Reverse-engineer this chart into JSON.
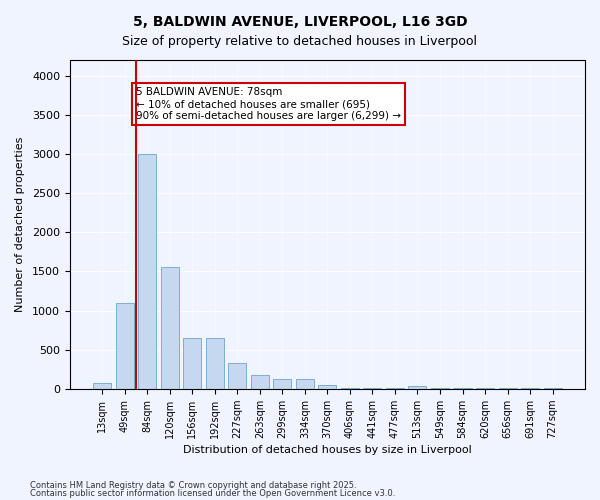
{
  "title1": "5, BALDWIN AVENUE, LIVERPOOL, L16 3GD",
  "title2": "Size of property relative to detached houses in Liverpool",
  "xlabel": "Distribution of detached houses by size in Liverpool",
  "ylabel": "Number of detached properties",
  "bar_color": "#c5d8f0",
  "bar_edge_color": "#7aafd4",
  "categories": [
    "13sqm",
    "49sqm",
    "84sqm",
    "120sqm",
    "156sqm",
    "192sqm",
    "227sqm",
    "263sqm",
    "299sqm",
    "334sqm",
    "370sqm",
    "406sqm",
    "441sqm",
    "477sqm",
    "513sqm",
    "549sqm",
    "584sqm",
    "620sqm",
    "656sqm",
    "691sqm",
    "727sqm"
  ],
  "values": [
    75,
    1100,
    3000,
    1550,
    650,
    650,
    330,
    180,
    130,
    130,
    50,
    10,
    5,
    5,
    30,
    5,
    5,
    5,
    5,
    5,
    5
  ],
  "ylim": [
    0,
    4200
  ],
  "yticks": [
    0,
    500,
    1000,
    1500,
    2000,
    2500,
    3000,
    3500,
    4000
  ],
  "vline_x": 1,
  "vline_color": "#cc0000",
  "annotation_box_text": "5 BALDWIN AVENUE: 78sqm\n← 10% of detached houses are smaller (695)\n90% of semi-detached houses are larger (6,299) →",
  "annotation_box_color": "#cc0000",
  "annotation_box_bg": "#ffffff",
  "footnote1": "Contains HM Land Registry data © Crown copyright and database right 2025.",
  "footnote2": "Contains public sector information licensed under the Open Government Licence v3.0.",
  "bg_color": "#f0f4ff",
  "plot_bg_color": "#f0f4ff"
}
